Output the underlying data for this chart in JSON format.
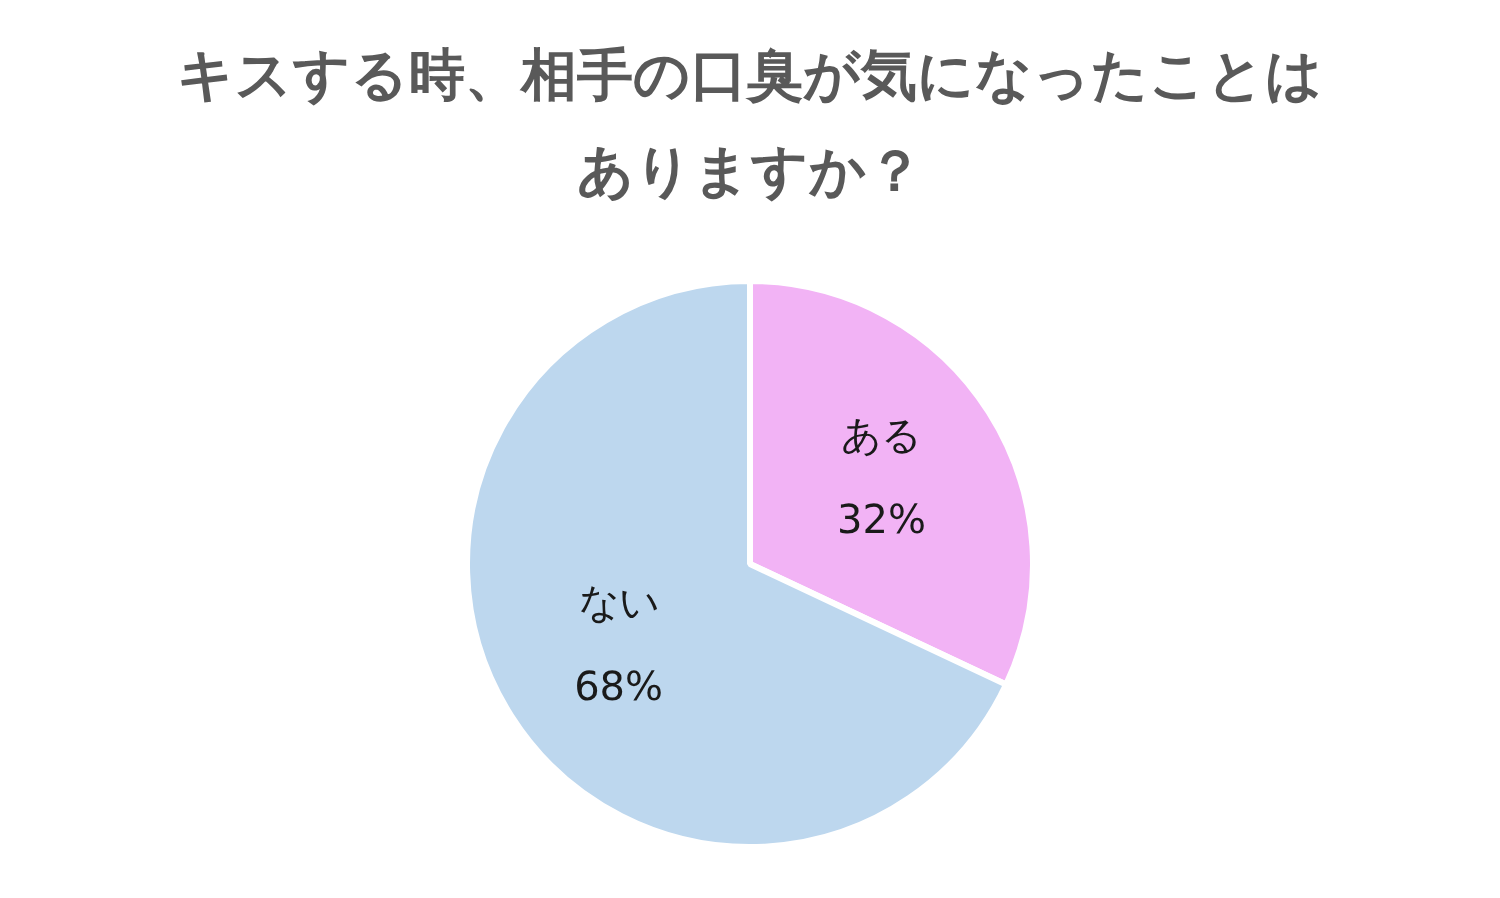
{
  "chart_data": {
    "type": "pie",
    "title": "キスする時、相手の口臭が気になったことはありますか？",
    "categories": [
      "ある",
      "ない"
    ],
    "values": [
      32,
      68
    ],
    "colors": [
      "#f2b3f5",
      "#bdd7ee"
    ],
    "value_labels": [
      "32%",
      "68%"
    ]
  }
}
